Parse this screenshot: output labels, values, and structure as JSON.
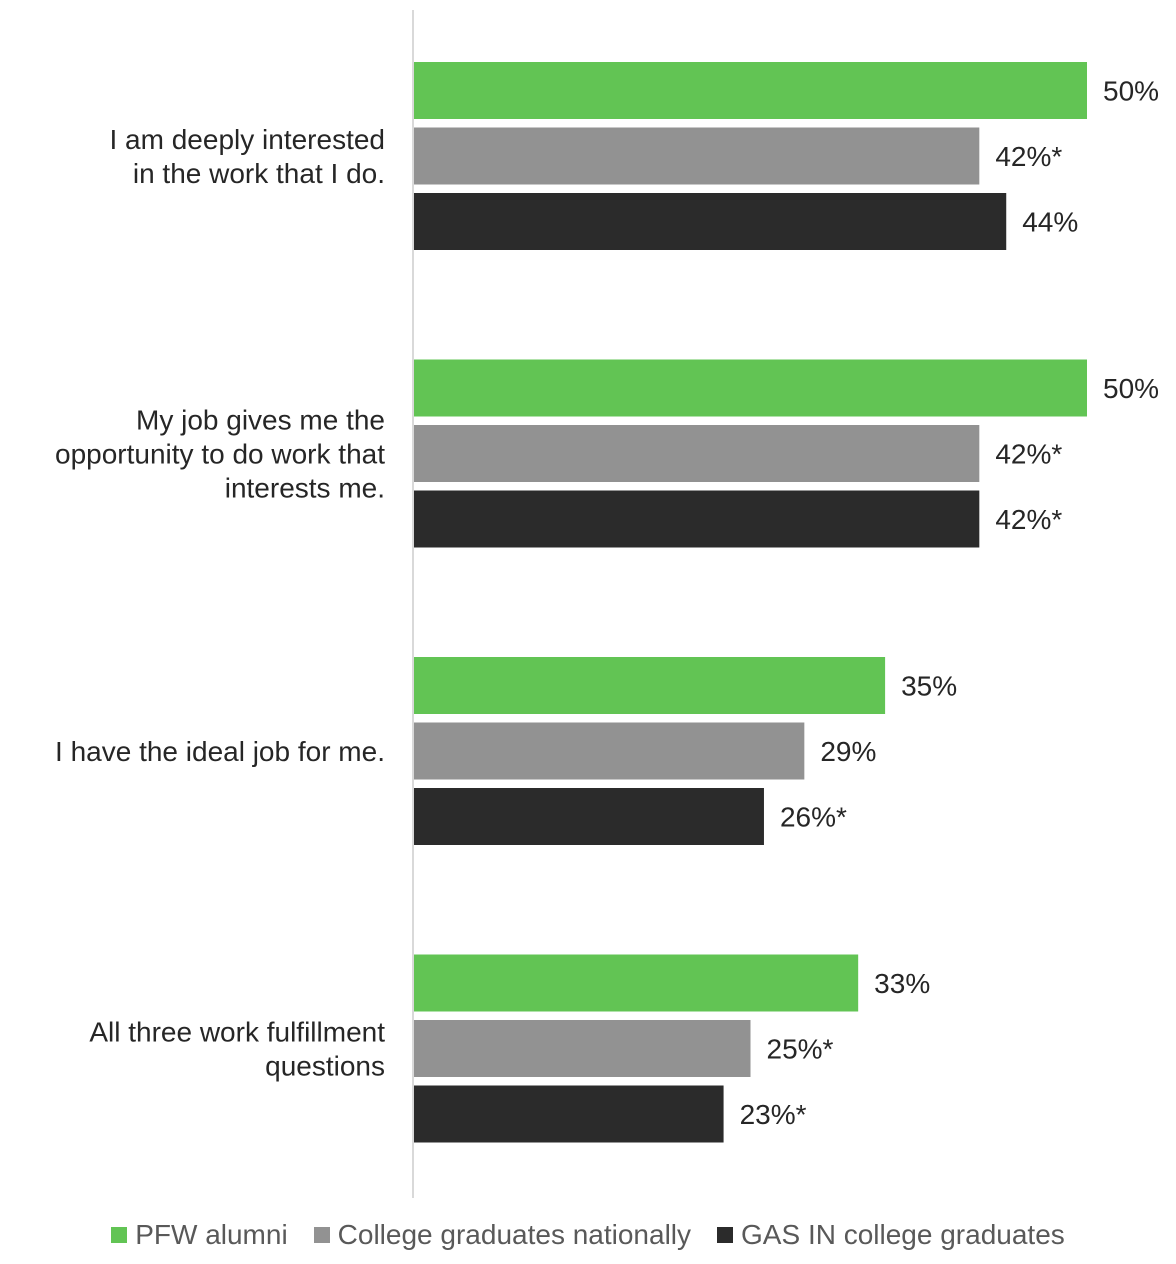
{
  "chart_data": {
    "type": "bar",
    "orientation": "horizontal",
    "categories": [
      [
        "I am deeply interested",
        "in the work that I do."
      ],
      [
        "My job gives me the",
        "opportunity to do work that",
        "interests me."
      ],
      [
        "I have the ideal job for me."
      ],
      [
        "All three work fulfillment",
        "questions"
      ]
    ],
    "series": [
      {
        "name": "PFW alumni",
        "color": "#62c454",
        "values": [
          50,
          50,
          35,
          33
        ],
        "labels": [
          "50%",
          "50%",
          "35%",
          "33%"
        ]
      },
      {
        "name": "College graduates nationally",
        "color": "#929292",
        "values": [
          42,
          42,
          29,
          25
        ],
        "labels": [
          "42%*",
          "42%*",
          "29%",
          "25%*"
        ]
      },
      {
        "name": "GAS IN college graduates",
        "color": "#2b2b2b",
        "values": [
          44,
          42,
          26,
          23
        ],
        "labels": [
          "44%",
          "42%*",
          "26%*",
          "23%*"
        ]
      }
    ],
    "xlim": [
      0,
      50
    ],
    "grid": false,
    "legend_position": "bottom"
  }
}
